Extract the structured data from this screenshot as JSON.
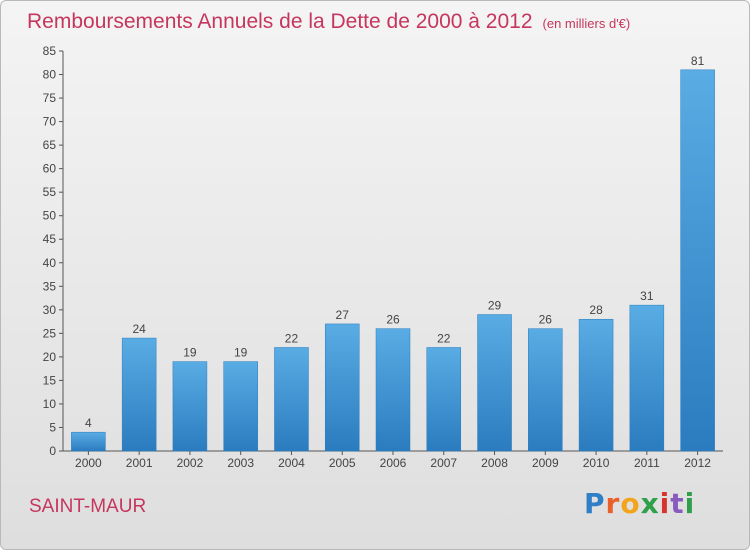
{
  "title": "Remboursements Annuels de la Dette de 2000 à 2012",
  "unit": "(en milliers d'€)",
  "commune": "SAINT-MAUR",
  "brand": "Proxiti",
  "chart_data": {
    "type": "bar",
    "categories": [
      "2000",
      "2001",
      "2002",
      "2003",
      "2004",
      "2005",
      "2006",
      "2007",
      "2008",
      "2009",
      "2010",
      "2011",
      "2012"
    ],
    "values": [
      4,
      24,
      19,
      19,
      22,
      27,
      26,
      22,
      29,
      26,
      28,
      31,
      81
    ],
    "title": "Remboursements Annuels de la Dette de 2000 à 2012",
    "subtitle": "(en milliers d'€)",
    "xlabel": "",
    "ylabel": "",
    "ylim": [
      0,
      85
    ],
    "yticks": [
      0,
      5,
      10,
      15,
      20,
      25,
      30,
      35,
      40,
      45,
      50,
      55,
      60,
      65,
      70,
      75,
      80,
      85
    ],
    "grid": false,
    "legend": "none",
    "colors": {
      "bar_light": "#5aace4",
      "bar_dark": "#2a7cbf",
      "title": "#c6365f",
      "axis": "#555555"
    }
  }
}
